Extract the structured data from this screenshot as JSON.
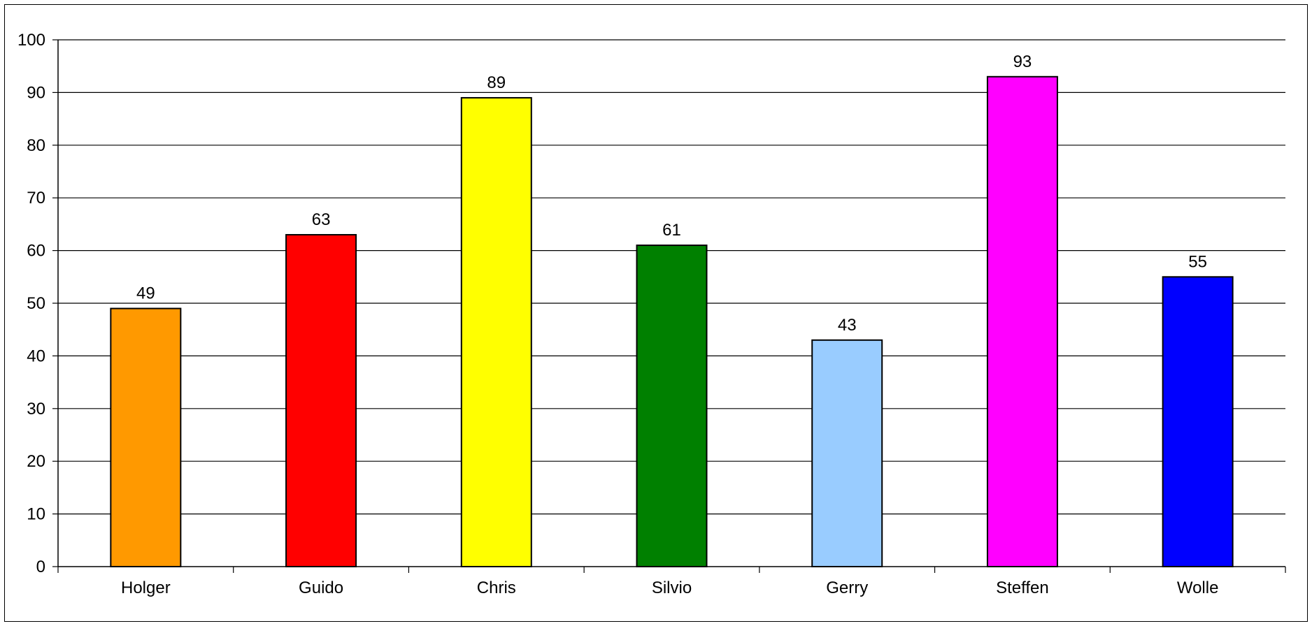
{
  "chart_data": {
    "type": "bar",
    "categories": [
      "Holger",
      "Guido",
      "Chris",
      "Silvio",
      "Gerry",
      "Steffen",
      "Wolle"
    ],
    "values": [
      49,
      63,
      89,
      61,
      43,
      93,
      55
    ],
    "colors": [
      "#FF9900",
      "#FF0000",
      "#FFFF00",
      "#008000",
      "#99CCFF",
      "#FF00FF",
      "#0000FF"
    ],
    "data_labels": [
      "49",
      "63",
      "89",
      "61",
      "43",
      "93",
      "55"
    ],
    "yticks": [
      0,
      10,
      20,
      30,
      40,
      50,
      60,
      70,
      80,
      90,
      100
    ],
    "ytick_labels": [
      "0",
      "10",
      "20",
      "30",
      "40",
      "50",
      "60",
      "70",
      "80",
      "90",
      "100"
    ],
    "ylim": [
      0,
      100
    ],
    "title": "",
    "xlabel": "",
    "ylabel": "",
    "grid": true,
    "legend": "none"
  }
}
